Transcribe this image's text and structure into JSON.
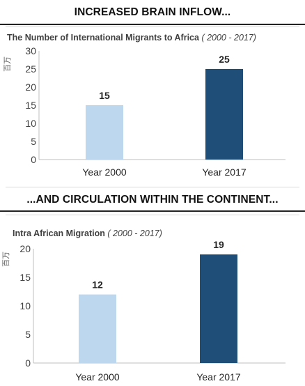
{
  "header_top": "INCREASED BRAIN INFLOW...",
  "header_middle": "...AND CIRCULATION WITHIN THE CONTINENT...",
  "colors": {
    "light_bar": "#bdd7ee",
    "dark_bar": "#1f4e79"
  },
  "chart_data": [
    {
      "type": "bar",
      "title": "The Number of International Migrants to Africa",
      "subtitle": "( 2000 - 2017)",
      "ylabel": "百万",
      "categories": [
        "Year 2000",
        "Year 2017"
      ],
      "values": [
        15,
        25
      ],
      "data_labels": [
        "15",
        "25"
      ],
      "yticks": [
        "0",
        "5",
        "10",
        "15",
        "20",
        "25",
        "30"
      ],
      "ylim": [
        0,
        30
      ],
      "grid": false
    },
    {
      "type": "bar",
      "title": "Intra African Migration",
      "subtitle": "( 2000 - 2017)",
      "ylabel": "百万",
      "categories": [
        "Year 2000",
        "Year 2017"
      ],
      "values": [
        12,
        19
      ],
      "data_labels": [
        "12",
        "19"
      ],
      "yticks": [
        "0",
        "5",
        "10",
        "15",
        "20"
      ],
      "ylim": [
        0,
        20
      ],
      "grid": false
    }
  ]
}
